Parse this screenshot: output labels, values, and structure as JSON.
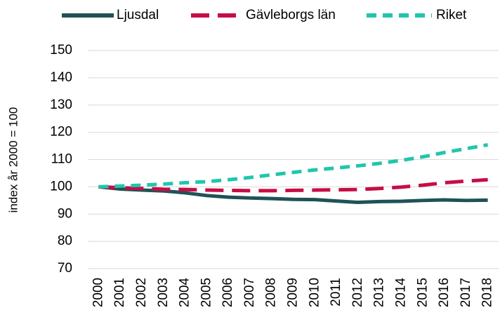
{
  "chart_data": {
    "type": "line",
    "y_label": "index år 2000 = 100",
    "categories": [
      "2000",
      "2001",
      "2002",
      "2003",
      "2004",
      "2005",
      "2006",
      "2007",
      "2008",
      "2009",
      "2010",
      "2011",
      "2012",
      "2013",
      "2014",
      "2015",
      "2016",
      "2017",
      "2018"
    ],
    "series": [
      {
        "name": "Ljusdal",
        "color": "#1f5257",
        "linestyle": "solid",
        "values": [
          100,
          99.2,
          98.8,
          98.5,
          97.8,
          96.8,
          96.2,
          95.9,
          95.7,
          95.4,
          95.3,
          94.8,
          94.3,
          94.6,
          94.7,
          95.0,
          95.2,
          95.0,
          95.1
        ]
      },
      {
        "name": "Gävleborgs län",
        "color": "#c70d45",
        "linestyle": "dashed",
        "values": [
          100,
          99.7,
          99.4,
          99.1,
          99.0,
          98.8,
          98.7,
          98.6,
          98.6,
          98.7,
          98.8,
          98.9,
          99.0,
          99.4,
          99.9,
          100.6,
          101.5,
          102.1,
          102.6
        ]
      },
      {
        "name": "Riket",
        "color": "#1fc6ad",
        "linestyle": "dotted",
        "values": [
          100,
          100.3,
          100.6,
          101.0,
          101.5,
          101.9,
          102.6,
          103.4,
          104.4,
          105.3,
          106.2,
          106.9,
          107.7,
          108.6,
          109.7,
          111.0,
          112.6,
          114.0,
          115.4
        ]
      }
    ],
    "ylim": [
      70,
      150
    ],
    "yticks": [
      70,
      80,
      90,
      100,
      110,
      120,
      130,
      140,
      150
    ],
    "grid": true,
    "legend": "top"
  }
}
